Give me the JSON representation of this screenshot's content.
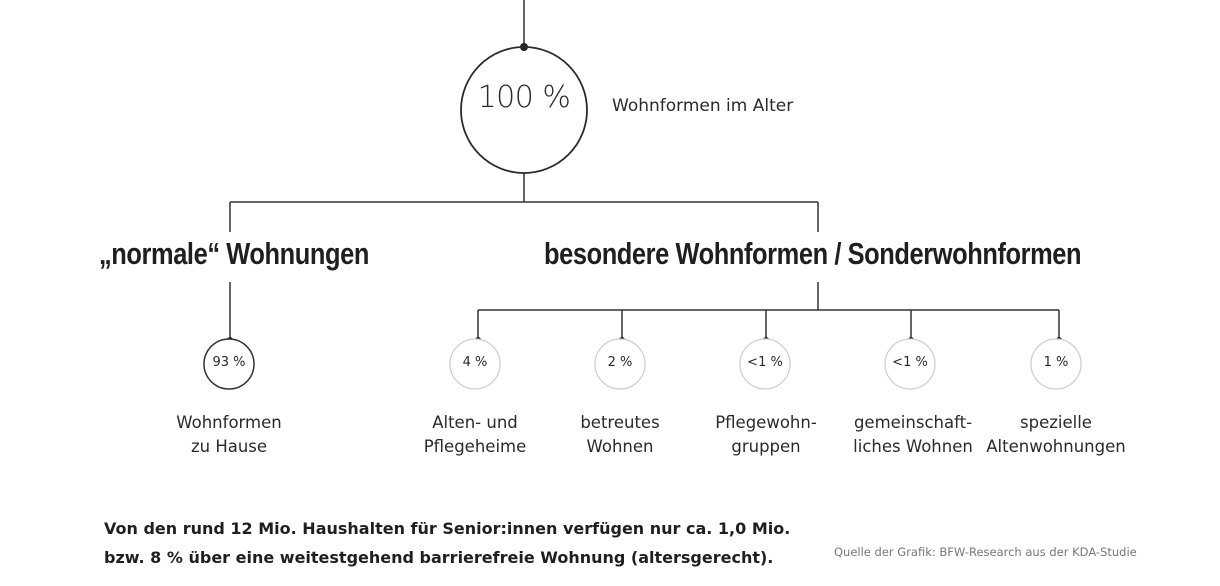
{
  "root": {
    "value": "100 %",
    "label": "Wohnformen im Alter"
  },
  "categories": {
    "left": "„normale“ Wohnungen",
    "right": "besondere Wohnformen / Sonderwohnformen"
  },
  "leaves": [
    {
      "value": "93 %",
      "line1": "Wohnformen",
      "line2": "zu Hause"
    },
    {
      "value": "4 %",
      "line1": "Alten- und",
      "line2": "Pflegeheime"
    },
    {
      "value": "2 %",
      "line1": "betreutes",
      "line2": "Wohnen"
    },
    {
      "value": "<1 %",
      "line1": "Pflegewohn-",
      "line2": "gruppen"
    },
    {
      "value": "<1 %",
      "line1": "gemeinschaft-",
      "line2": "liches Wohnen"
    },
    {
      "value": "1 %",
      "line1": "spezielle",
      "line2": "Altenwohnungen"
    }
  ],
  "footer": {
    "line1": "Von den rund 12 Mio. Haushalten für Senior:innen verfügen nur ca. 1,0 Mio.",
    "line2": "bzw. 8 % über eine weitestgehend barrierefreie Wohnung (altersgerecht)."
  },
  "source": "Quelle der Grafik: BFW-Research aus der KDA-Studie",
  "colors": {
    "line": "#333333",
    "circle_stroke": "#2b2b2b",
    "small_circle_stroke": "#cfcfcf",
    "text": "#1f1f1f",
    "source_text": "#777777"
  }
}
